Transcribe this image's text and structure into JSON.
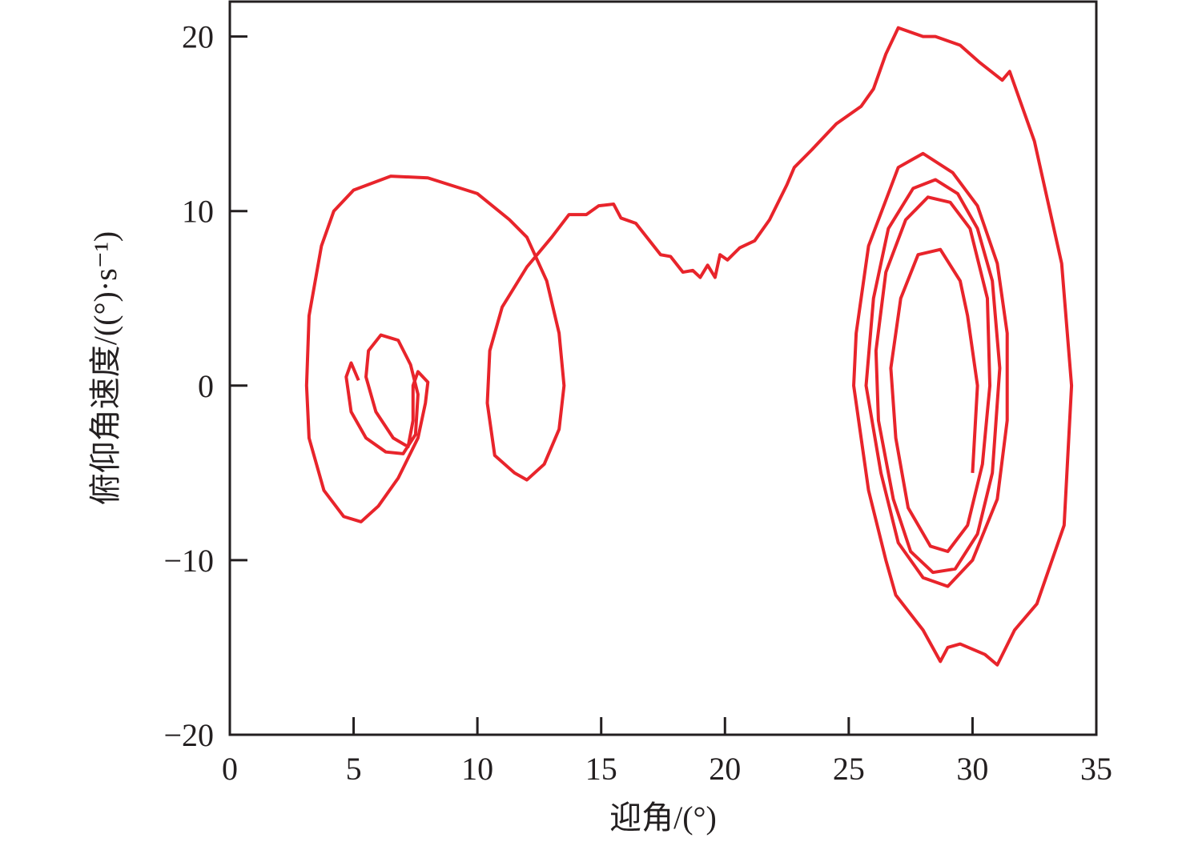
{
  "chart_data": {
    "type": "line",
    "x_label": "迎角/(°)",
    "y_label": "俯仰角速度/((°)·s⁻¹)",
    "xlim": [
      0,
      35
    ],
    "ylim": [
      -20,
      22
    ],
    "xticks": [
      0,
      5,
      10,
      15,
      20,
      25,
      30,
      35
    ],
    "yticks": [
      {
        "value": -20,
        "label": "−20"
      },
      {
        "value": -10,
        "label": "−10"
      },
      0,
      10,
      20
    ],
    "series": [
      {
        "color": "#e8242b",
        "x": [
          5.2,
          4.9,
          4.7,
          4.9,
          5.5,
          6.3,
          7.0,
          7.5,
          7.6,
          7.3,
          6.8,
          6.1,
          5.6,
          5.5,
          5.9,
          6.6,
          7.2,
          7.4,
          7.4,
          7.6,
          8.0,
          7.9,
          7.6,
          6.8,
          6.0,
          5.3,
          4.6,
          3.8,
          3.2,
          3.1,
          3.2,
          3.7,
          4.2,
          5.0,
          6.5,
          8.0,
          10.0,
          11.3,
          12.0,
          12.8,
          13.3,
          13.5,
          13.3,
          12.7,
          12.0,
          11.5,
          10.7,
          10.4,
          10.5,
          11.0,
          12.0,
          13.0,
          13.7,
          14.4,
          14.9,
          15.5,
          15.8,
          16.4,
          17.4,
          17.8,
          18.3,
          18.7,
          19.0,
          19.3,
          19.6,
          19.8,
          20.1,
          20.6,
          21.2,
          21.8,
          22.5,
          22.8,
          23.5,
          24.5,
          25.5,
          26.0,
          26.5,
          27.0,
          28.0,
          28.5,
          29.5,
          30.3,
          31.2,
          31.5,
          32.5,
          33.6,
          34.0,
          33.7,
          32.6,
          31.7,
          31.0,
          30.5,
          29.5,
          29.0,
          28.7,
          28.0,
          26.9,
          26.5,
          25.8,
          25.2,
          25.3,
          25.8,
          27.0,
          28.0,
          29.2,
          30.2,
          31.0,
          31.4,
          31.4,
          31.0,
          30.0,
          29.0,
          28.0,
          27.0,
          26.3,
          25.7,
          26.0,
          26.6,
          27.6,
          28.5,
          29.4,
          30.2,
          30.8,
          31.1,
          30.8,
          30.2,
          29.3,
          28.4,
          27.5,
          26.8,
          26.2,
          26.1,
          26.5,
          27.3,
          28.2,
          29.1,
          29.9,
          30.6,
          30.7,
          30.4,
          29.8,
          29.0,
          28.3,
          27.4,
          26.9,
          26.7,
          27.1,
          27.8,
          28.7,
          29.5,
          29.8,
          30.2,
          30.0
        ],
        "values": [
          0.3,
          1.3,
          0.5,
          -1.5,
          -3.0,
          -3.8,
          -3.9,
          -2.8,
          -0.5,
          1.2,
          2.6,
          2.9,
          2.0,
          0.5,
          -1.5,
          -3.0,
          -3.5,
          -2.0,
          0.0,
          0.8,
          0.2,
          -1.0,
          -3.0,
          -5.3,
          -6.9,
          -7.8,
          -7.5,
          -6.0,
          -3.0,
          0.0,
          4.0,
          8.0,
          10.0,
          11.2,
          12.0,
          11.9,
          11.0,
          9.5,
          8.5,
          6.0,
          3.0,
          0.0,
          -2.5,
          -4.5,
          -5.4,
          -5.0,
          -4.0,
          -1.0,
          2.0,
          4.5,
          6.8,
          8.5,
          9.8,
          9.8,
          10.3,
          10.4,
          9.6,
          9.3,
          7.5,
          7.4,
          6.5,
          6.6,
          6.2,
          6.9,
          6.2,
          7.5,
          7.2,
          7.9,
          8.3,
          9.5,
          11.5,
          12.5,
          13.5,
          15.0,
          16.0,
          17.0,
          19.0,
          20.5,
          20.0,
          20.0,
          19.5,
          18.5,
          17.5,
          18.0,
          14.0,
          7.0,
          0.0,
          -8.0,
          -12.5,
          -14.0,
          -16.0,
          -15.4,
          -14.8,
          -15.0,
          -15.8,
          -14.0,
          -12.0,
          -10.0,
          -6.0,
          0.0,
          3.0,
          8.0,
          12.5,
          13.3,
          12.2,
          10.3,
          7.0,
          3.0,
          -2.0,
          -6.5,
          -10.0,
          -11.5,
          -11.0,
          -9.0,
          -5.0,
          0.0,
          5.0,
          9.0,
          11.3,
          11.8,
          11.0,
          9.0,
          6.0,
          1.0,
          -5.0,
          -8.5,
          -10.5,
          -10.7,
          -9.5,
          -6.5,
          -2.0,
          2.0,
          6.5,
          9.5,
          10.8,
          10.5,
          9.0,
          5.0,
          0.0,
          -4.5,
          -8.0,
          -9.5,
          -9.2,
          -7.0,
          -3.0,
          1.0,
          5.0,
          7.5,
          7.8,
          6.0,
          4.0,
          0.0,
          -5.0
        ]
      }
    ]
  }
}
